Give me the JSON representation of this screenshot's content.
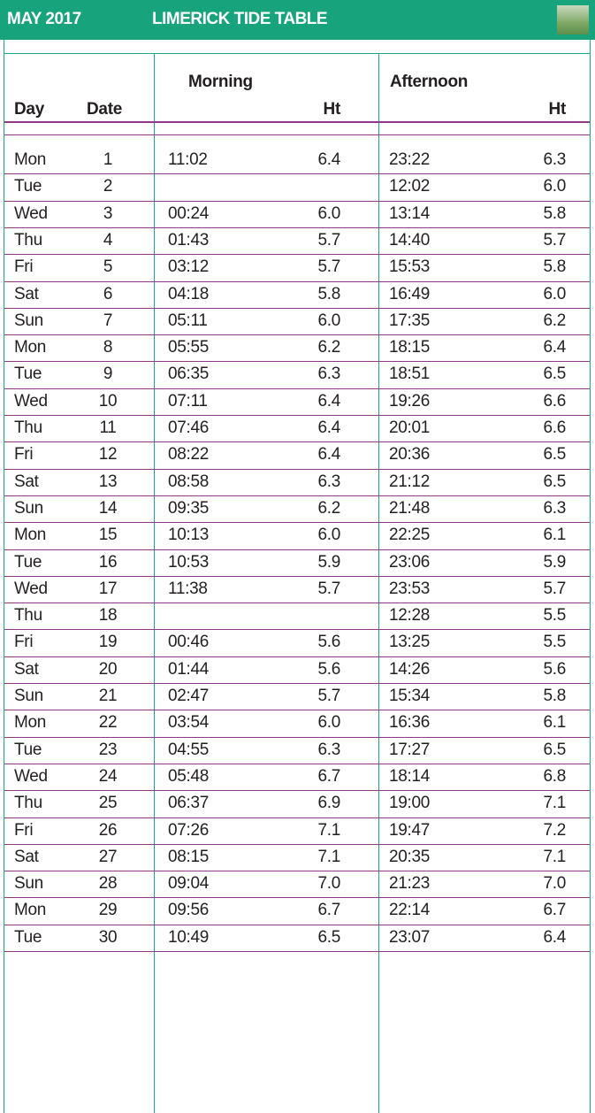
{
  "header": {
    "month": "MAY 2017",
    "title": "LIMERICK TIDE TABLE"
  },
  "table": {
    "group_headers": [
      "Morning",
      "Afternoon"
    ],
    "columns": [
      "Day",
      "Date",
      "Ht",
      "Ht"
    ],
    "rows": [
      [
        "Mon",
        "1",
        "11:02",
        "6.4",
        "23:22",
        "6.3"
      ],
      [
        "Tue",
        "2",
        null,
        null,
        "12:02",
        "6.0"
      ],
      [
        "Wed",
        "3",
        "00:24",
        "6.0",
        "13:14",
        "5.8"
      ],
      [
        "Thu",
        "4",
        "01:43",
        "5.7",
        "14:40",
        "5.7"
      ],
      [
        "Fri",
        "5",
        "03:12",
        "5.7",
        "15:53",
        "5.8"
      ],
      [
        "Sat",
        "6",
        "04:18",
        "5.8",
        "16:49",
        "6.0"
      ],
      [
        "Sun",
        "7",
        "05:11",
        "6.0",
        "17:35",
        "6.2"
      ],
      [
        "Mon",
        "8",
        "05:55",
        "6.2",
        "18:15",
        "6.4"
      ],
      [
        "Tue",
        "9",
        "06:35",
        "6.3",
        "18:51",
        "6.5"
      ],
      [
        "Wed",
        "10",
        "07:11",
        "6.4",
        "19:26",
        "6.6"
      ],
      [
        "Thu",
        "11",
        "07:46",
        "6.4",
        "20:01",
        "6.6"
      ],
      [
        "Fri",
        "12",
        "08:22",
        "6.4",
        "20:36",
        "6.5"
      ],
      [
        "Sat",
        "13",
        "08:58",
        "6.3",
        "21:12",
        "6.5"
      ],
      [
        "Sun",
        "14",
        "09:35",
        "6.2",
        "21:48",
        "6.3"
      ],
      [
        "Mon",
        "15",
        "10:13",
        "6.0",
        "22:25",
        "6.1"
      ],
      [
        "Tue",
        "16",
        "10:53",
        "5.9",
        "23:06",
        "5.9"
      ],
      [
        "Wed",
        "17",
        "11:38",
        "5.7",
        "23:53",
        "5.7"
      ],
      [
        "Thu",
        "18",
        null,
        null,
        "12:28",
        "5.5"
      ],
      [
        "Fri",
        "19",
        "00:46",
        "5.6",
        "13:25",
        "5.5"
      ],
      [
        "Sat",
        "20",
        "01:44",
        "5.6",
        "14:26",
        "5.6"
      ],
      [
        "Sun",
        "21",
        "02:47",
        "5.7",
        "15:34",
        "5.8"
      ],
      [
        "Mon",
        "22",
        "03:54",
        "6.0",
        "16:36",
        "6.1"
      ],
      [
        "Tue",
        "23",
        "04:55",
        "6.3",
        "17:27",
        "6.5"
      ],
      [
        "Wed",
        "24",
        "05:48",
        "6.7",
        "18:14",
        "6.8"
      ],
      [
        "Thu",
        "25",
        "06:37",
        "6.9",
        "19:00",
        "7.1"
      ],
      [
        "Fri",
        "26",
        "07:26",
        "7.1",
        "19:47",
        "7.2"
      ],
      [
        "Sat",
        "27",
        "08:15",
        "7.1",
        "20:35",
        "7.1"
      ],
      [
        "Sun",
        "28",
        "09:04",
        "7.0",
        "21:23",
        "7.0"
      ],
      [
        "Mon",
        "29",
        "09:56",
        "6.7",
        "22:14",
        "6.7"
      ],
      [
        "Tue",
        "30",
        "10:49",
        "6.5",
        "23:07",
        "6.4"
      ]
    ]
  }
}
